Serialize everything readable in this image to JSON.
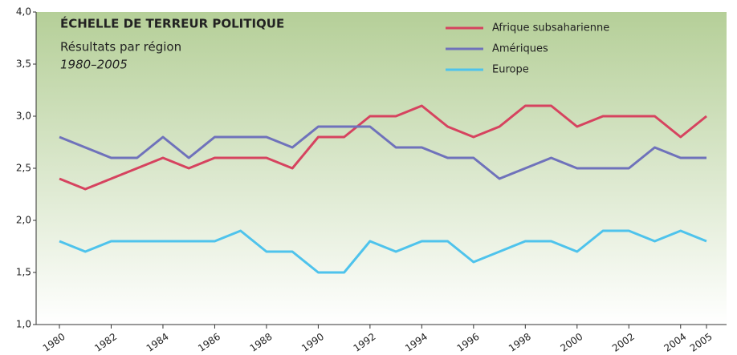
{
  "chart_data": {
    "type": "line",
    "title": "ÉCHELLE DE TERREUR POLITIQUE",
    "subtitle": "Résultats par région",
    "period": "1980–2005",
    "x": [
      1980,
      1981,
      1982,
      1983,
      1984,
      1985,
      1986,
      1987,
      1988,
      1989,
      1990,
      1991,
      1992,
      1993,
      1994,
      1995,
      1996,
      1997,
      1998,
      1999,
      2000,
      2001,
      2002,
      2003,
      2004,
      2005
    ],
    "xlim": [
      1980,
      2005
    ],
    "xticks": [
      1980,
      1982,
      1984,
      1986,
      1988,
      1990,
      1992,
      1994,
      1996,
      1998,
      2000,
      2002,
      2004,
      2005
    ],
    "ylim": [
      1,
      4
    ],
    "yticks": [
      {
        "value": 1,
        "label": "1,0"
      },
      {
        "value": 1.5,
        "label": "1,5"
      },
      {
        "value": 2,
        "label": "2,0"
      },
      {
        "value": 2.5,
        "label": "2,5"
      },
      {
        "value": 3,
        "label": "3,0"
      },
      {
        "value": 3.5,
        "label": "3,5"
      },
      {
        "value": 4,
        "label": "4,0"
      }
    ],
    "legend": "top-right",
    "series": [
      {
        "name": "Afrique subsaharienne",
        "color": "#d6435f",
        "values": [
          2.4,
          2.3,
          2.4,
          2.5,
          2.6,
          2.5,
          2.6,
          2.6,
          2.6,
          2.5,
          2.8,
          2.8,
          3.0,
          3.0,
          3.1,
          2.9,
          2.8,
          2.9,
          3.1,
          3.1,
          2.9,
          3.0,
          3.0,
          3.0,
          2.8,
          3.0
        ]
      },
      {
        "name": "Amériques",
        "color": "#6f72bb",
        "values": [
          2.8,
          2.7,
          2.6,
          2.6,
          2.8,
          2.6,
          2.8,
          2.8,
          2.8,
          2.7,
          2.9,
          2.9,
          2.9,
          2.7,
          2.7,
          2.6,
          2.6,
          2.4,
          2.5,
          2.6,
          2.5,
          2.5,
          2.5,
          2.7,
          2.6,
          2.6
        ]
      },
      {
        "name": "Europe",
        "color": "#4ec3ec",
        "values": [
          1.8,
          1.7,
          1.8,
          1.8,
          1.8,
          1.8,
          1.8,
          1.9,
          1.7,
          1.7,
          1.5,
          1.5,
          1.8,
          1.7,
          1.8,
          1.8,
          1.6,
          1.7,
          1.8,
          1.8,
          1.7,
          1.9,
          1.9,
          1.8,
          1.9,
          1.8
        ]
      }
    ]
  }
}
